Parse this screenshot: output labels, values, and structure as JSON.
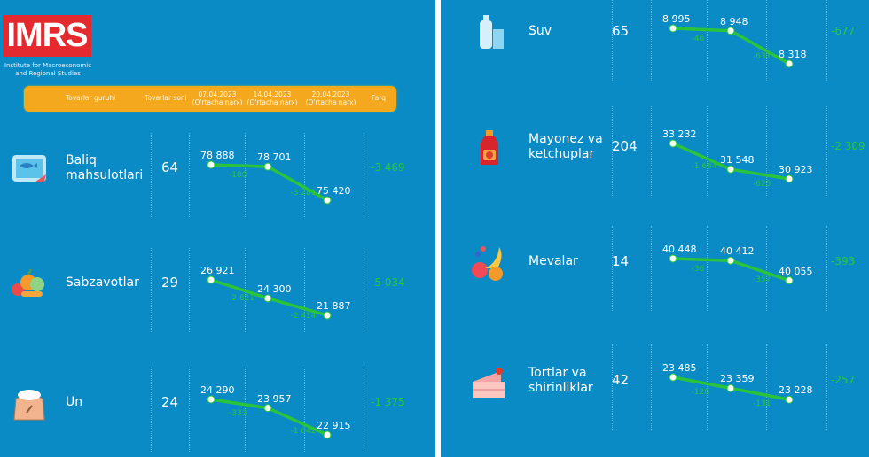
{
  "logo": {
    "text": "IMRS",
    "subtitle": "Institute for Macroeconomic and Regional Studies"
  },
  "header": {
    "group": "Tovarlar guruhi",
    "count": "Tovarlar soni",
    "d1": "07.04.2023 (O'rtacha narx)",
    "d2": "14.04.2023 (O'rtacha narx)",
    "d3": "20.04.2023 (O'rtacha narx)",
    "farq": "Farq"
  },
  "colors": {
    "background": "#0a8bc6",
    "header": "#f4a81d",
    "line": "#2ac43c",
    "logo": "#e52a2f"
  },
  "chart_data": {
    "type": "line",
    "x": [
      "07.04.2023",
      "14.04.2023",
      "20.04.2023"
    ],
    "series": [
      {
        "name": "Baliq mahsulotlari",
        "icon": "fish-icon",
        "count": "64",
        "values": [
          78888,
          78701,
          75420
        ],
        "labels": [
          "78 888",
          "78 701",
          "75 420"
        ],
        "diffs": [
          "-188",
          "-3 281"
        ],
        "farq": "-3 469"
      },
      {
        "name": "Sabzavotlar",
        "icon": "vegetables-icon",
        "count": "29",
        "values": [
          26921,
          24300,
          21887
        ],
        "labels": [
          "26 921",
          "24 300",
          "21 887"
        ],
        "diffs": [
          "-2 621",
          "-2 414"
        ],
        "farq": "-5 034"
      },
      {
        "name": "Un",
        "icon": "flour-sack-icon",
        "count": "24",
        "values": [
          24290,
          23957,
          22915
        ],
        "labels": [
          "24 290",
          "23 957",
          "22 915"
        ],
        "diffs": [
          "-333",
          "-1 042"
        ],
        "farq": "-1 375"
      },
      {
        "name": "Suv",
        "icon": "water-bottle-icon",
        "count": "65",
        "values": [
          8995,
          8948,
          8318
        ],
        "labels": [
          "8 995",
          "8 948",
          "8 318"
        ],
        "diffs": [
          "-46",
          "-631"
        ],
        "farq": "-677"
      },
      {
        "name": "Mayonez va ketchuplar",
        "icon": "ketchup-icon",
        "count": "204",
        "values": [
          33232,
          31548,
          30923
        ],
        "labels": [
          "33 232",
          "31 548",
          "30 923"
        ],
        "diffs": [
          "-1 684",
          "-625"
        ],
        "farq": "-2 309"
      },
      {
        "name": "Mevalar",
        "icon": "fruits-icon",
        "count": "14",
        "values": [
          40448,
          40412,
          40055
        ],
        "labels": [
          "40 448",
          "40 412",
          "40 055"
        ],
        "diffs": [
          "-36",
          "-357"
        ],
        "farq": "-393"
      },
      {
        "name": "Tortlar va shirinliklar",
        "icon": "cake-icon",
        "count": "42",
        "values": [
          23485,
          23359,
          23228
        ],
        "labels": [
          "23 485",
          "23 359",
          "23 228"
        ],
        "diffs": [
          "-126",
          "-131"
        ],
        "farq": "-257"
      }
    ]
  }
}
